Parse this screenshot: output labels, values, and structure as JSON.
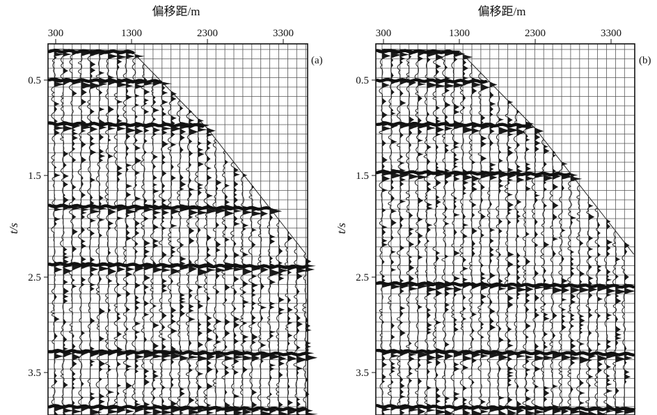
{
  "chart_data": [
    {
      "type": "seismic-gather",
      "panel_label": "(a)",
      "xlabel": "偏移距/m",
      "ylabel": "t/s",
      "x_ticks": [
        300,
        1300,
        2300,
        3300
      ],
      "y_ticks": [
        0.5,
        1.5,
        2.5,
        3.5
      ],
      "y_tick_labels": [
        "0.5",
        "1.5",
        "2.5",
        "3.5"
      ],
      "xlim": [
        300,
        3600
      ],
      "ylim": [
        0.15,
        4.0
      ],
      "grid": true,
      "first_break": {
        "offset": [
          300,
          1300,
          2300,
          3300,
          3600
        ],
        "t": [
          0.18,
          0.2,
          1.0,
          2.0,
          2.3
        ]
      },
      "strong_reflections_t": [
        0.2,
        0.5,
        0.95,
        1.8,
        2.4,
        3.3,
        3.87
      ]
    },
    {
      "type": "seismic-gather",
      "panel_label": "(b)",
      "xlabel": "偏移距/m",
      "ylabel": "t/s",
      "x_ticks": [
        300,
        1300,
        2300,
        3300
      ],
      "y_ticks": [
        0.5,
        1.5,
        2.5,
        3.5
      ],
      "y_tick_labels": [
        "0.5",
        "1.5",
        "2.5",
        "3.5"
      ],
      "xlim": [
        300,
        3600
      ],
      "ylim": [
        0.15,
        4.0
      ],
      "grid": true,
      "first_break": {
        "offset": [
          300,
          1300,
          2300,
          3300,
          3600
        ],
        "t": [
          0.18,
          0.2,
          1.0,
          2.0,
          2.3
        ]
      },
      "strong_reflections_t": [
        0.2,
        0.5,
        0.95,
        1.45,
        2.6,
        3.3,
        3.87
      ]
    }
  ]
}
